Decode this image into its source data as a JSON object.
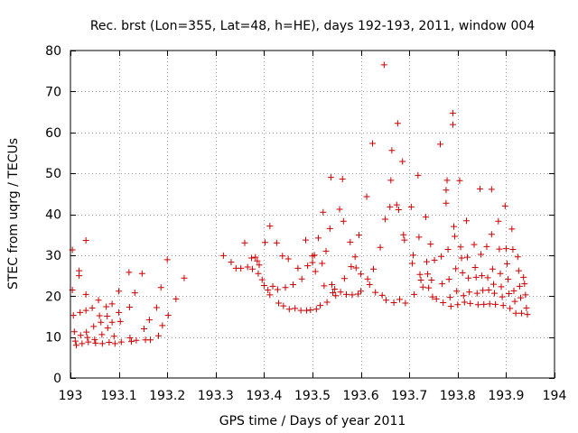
{
  "chart_data": {
    "type": "scatter",
    "title": "Rec. brst (Lon=355, Lat=48, h=HE), days 192-193, 2011, window 004",
    "xlabel": "GPS time / Days of year 2011",
    "ylabel": "STEC from uqrg / TECUs",
    "xlim": [
      193,
      194
    ],
    "ylim": [
      0,
      80
    ],
    "xticks": [
      193,
      193.1,
      193.2,
      193.3,
      193.4,
      193.5,
      193.6,
      193.7,
      193.8,
      193.9,
      194
    ],
    "xtick_labels": [
      "193",
      "193.1",
      "193.2",
      "193.3",
      "193.4",
      "193.5",
      "193.6",
      "193.7",
      "193.8",
      "193.9",
      "194"
    ],
    "yticks": [
      0,
      10,
      20,
      30,
      40,
      50,
      60,
      70,
      80
    ],
    "ytick_labels": [
      "0",
      "10",
      "20",
      "30",
      "40",
      "50",
      "60",
      "70",
      "80"
    ],
    "grid": true,
    "marker": "plus",
    "color": "#cc0000",
    "series": [
      {
        "name": "STEC",
        "points": [
          [
            193.004,
            31.3
          ],
          [
            193.004,
            21.5
          ],
          [
            193.006,
            15.3
          ],
          [
            193.008,
            11.3
          ],
          [
            193.01,
            9.0
          ],
          [
            193.012,
            8.0
          ],
          [
            193.018,
            25.0
          ],
          [
            193.018,
            26.2
          ],
          [
            193.02,
            16.0
          ],
          [
            193.021,
            10.4
          ],
          [
            193.024,
            8.4
          ],
          [
            193.032,
            33.6
          ],
          [
            193.032,
            20.4
          ],
          [
            193.032,
            16.5
          ],
          [
            193.033,
            11.2
          ],
          [
            193.035,
            9.9
          ],
          [
            193.037,
            8.8
          ],
          [
            193.045,
            17.1
          ],
          [
            193.048,
            12.6
          ],
          [
            193.05,
            9.4
          ],
          [
            193.052,
            8.5
          ],
          [
            193.058,
            19.0
          ],
          [
            193.06,
            15.2
          ],
          [
            193.063,
            13.6
          ],
          [
            193.065,
            10.6
          ],
          [
            193.066,
            8.4
          ],
          [
            193.074,
            17.4
          ],
          [
            193.076,
            15.1
          ],
          [
            193.077,
            12.2
          ],
          [
            193.08,
            8.7
          ],
          [
            193.086,
            18.1
          ],
          [
            193.086,
            13.6
          ],
          [
            193.09,
            10.2
          ],
          [
            193.092,
            8.4
          ],
          [
            193.1,
            21.2
          ],
          [
            193.1,
            16.0
          ],
          [
            193.103,
            13.8
          ],
          [
            193.105,
            8.8
          ],
          [
            193.121,
            25.8
          ],
          [
            193.122,
            17.3
          ],
          [
            193.123,
            9.8
          ],
          [
            193.126,
            8.9
          ],
          [
            193.133,
            20.8
          ],
          [
            193.136,
            9.2
          ],
          [
            193.148,
            25.5
          ],
          [
            193.152,
            12.0
          ],
          [
            193.155,
            9.3
          ],
          [
            193.163,
            14.2
          ],
          [
            193.165,
            9.3
          ],
          [
            193.178,
            17.2
          ],
          [
            193.182,
            10.3
          ],
          [
            193.187,
            22.1
          ],
          [
            193.19,
            12.8
          ],
          [
            193.2,
            28.9
          ],
          [
            193.202,
            15.3
          ],
          [
            193.218,
            19.3
          ],
          [
            193.235,
            24.4
          ],
          [
            193.316,
            29.9
          ],
          [
            193.332,
            28.3
          ],
          [
            193.342,
            26.8
          ],
          [
            193.352,
            26.8
          ],
          [
            193.36,
            33.0
          ],
          [
            193.366,
            27.1
          ],
          [
            193.374,
            29.3
          ],
          [
            193.376,
            26.6
          ],
          [
            193.382,
            29.5
          ],
          [
            193.386,
            28.6
          ],
          [
            193.388,
            25.5
          ],
          [
            193.39,
            27.6
          ],
          [
            193.396,
            24.0
          ],
          [
            193.4,
            22.6
          ],
          [
            193.402,
            33.1
          ],
          [
            193.408,
            21.5
          ],
          [
            193.412,
            37.1
          ],
          [
            193.412,
            20.3
          ],
          [
            193.418,
            22.4
          ],
          [
            193.426,
            33.0
          ],
          [
            193.428,
            21.6
          ],
          [
            193.43,
            18.3
          ],
          [
            193.438,
            29.8
          ],
          [
            193.44,
            17.6
          ],
          [
            193.444,
            22.1
          ],
          [
            193.45,
            29.1
          ],
          [
            193.452,
            16.8
          ],
          [
            193.46,
            22.8
          ],
          [
            193.464,
            17.0
          ],
          [
            193.47,
            26.8
          ],
          [
            193.476,
            16.5
          ],
          [
            193.478,
            24.2
          ],
          [
            193.486,
            33.7
          ],
          [
            193.488,
            16.5
          ],
          [
            193.49,
            27.4
          ],
          [
            193.496,
            16.6
          ],
          [
            193.5,
            29.8
          ],
          [
            193.5,
            28.2
          ],
          [
            193.504,
            30.0
          ],
          [
            193.506,
            26.0
          ],
          [
            193.508,
            16.8
          ],
          [
            193.512,
            34.2
          ],
          [
            193.516,
            17.7
          ],
          [
            193.52,
            28.0
          ],
          [
            193.522,
            40.5
          ],
          [
            193.524,
            22.5
          ],
          [
            193.528,
            31.0
          ],
          [
            193.53,
            18.5
          ],
          [
            193.536,
            36.5
          ],
          [
            193.538,
            49.0
          ],
          [
            193.54,
            22.8
          ],
          [
            193.542,
            20.8
          ],
          [
            193.546,
            21.7
          ],
          [
            193.548,
            20.1
          ],
          [
            193.556,
            41.2
          ],
          [
            193.558,
            21.0
          ],
          [
            193.562,
            48.6
          ],
          [
            193.564,
            38.3
          ],
          [
            193.566,
            24.3
          ],
          [
            193.57,
            20.4
          ],
          [
            193.578,
            33.2
          ],
          [
            193.58,
            27.2
          ],
          [
            193.582,
            20.3
          ],
          [
            193.588,
            29.6
          ],
          [
            193.59,
            26.9
          ],
          [
            193.594,
            20.5
          ],
          [
            193.596,
            34.9
          ],
          [
            193.6,
            25.4
          ],
          [
            193.6,
            21.2
          ],
          [
            193.612,
            44.3
          ],
          [
            193.614,
            24.2
          ],
          [
            193.618,
            22.8
          ],
          [
            193.624,
            57.3
          ],
          [
            193.626,
            26.6
          ],
          [
            193.63,
            20.9
          ],
          [
            193.64,
            31.9
          ],
          [
            193.644,
            20.2
          ],
          [
            193.648,
            76.5
          ],
          [
            193.65,
            38.8
          ],
          [
            193.652,
            19.0
          ],
          [
            193.66,
            41.8
          ],
          [
            193.662,
            48.3
          ],
          [
            193.664,
            55.6
          ],
          [
            193.668,
            18.4
          ],
          [
            193.674,
            42.3
          ],
          [
            193.676,
            62.2
          ],
          [
            193.678,
            41.1
          ],
          [
            193.68,
            19.2
          ],
          [
            193.686,
            52.9
          ],
          [
            193.688,
            35.0
          ],
          [
            193.69,
            33.7
          ],
          [
            193.692,
            18.3
          ],
          [
            193.704,
            41.8
          ],
          [
            193.706,
            28.0
          ],
          [
            193.708,
            30.0
          ],
          [
            193.71,
            20.4
          ],
          [
            193.718,
            49.5
          ],
          [
            193.72,
            34.4
          ],
          [
            193.722,
            25.3
          ],
          [
            193.724,
            23.9
          ],
          [
            193.728,
            22.2
          ],
          [
            193.734,
            39.3
          ],
          [
            193.736,
            28.4
          ],
          [
            193.738,
            25.4
          ],
          [
            193.74,
            22.0
          ],
          [
            193.744,
            32.7
          ],
          [
            193.746,
            23.9
          ],
          [
            193.748,
            19.8
          ],
          [
            193.752,
            28.8
          ],
          [
            193.756,
            19.3
          ],
          [
            193.764,
            57.1
          ],
          [
            193.766,
            29.7
          ],
          [
            193.768,
            23.0
          ],
          [
            193.77,
            18.4
          ],
          [
            193.776,
            45.9
          ],
          [
            193.776,
            42.7
          ],
          [
            193.778,
            48.3
          ],
          [
            193.78,
            31.4
          ],
          [
            193.782,
            24.1
          ],
          [
            193.784,
            19.7
          ],
          [
            193.786,
            17.5
          ],
          [
            193.79,
            64.7
          ],
          [
            193.79,
            61.9
          ],
          [
            193.792,
            37.0
          ],
          [
            193.794,
            34.6
          ],
          [
            193.796,
            26.7
          ],
          [
            193.798,
            21.2
          ],
          [
            193.8,
            17.9
          ],
          [
            193.804,
            48.2
          ],
          [
            193.806,
            32.0
          ],
          [
            193.808,
            29.3
          ],
          [
            193.81,
            25.7
          ],
          [
            193.812,
            20.1
          ],
          [
            193.814,
            18.5
          ],
          [
            193.818,
            38.4
          ],
          [
            193.82,
            29.5
          ],
          [
            193.822,
            24.4
          ],
          [
            193.824,
            21.0
          ],
          [
            193.826,
            18.2
          ],
          [
            193.834,
            32.6
          ],
          [
            193.836,
            27.0
          ],
          [
            193.838,
            24.6
          ],
          [
            193.84,
            20.7
          ],
          [
            193.842,
            17.9
          ],
          [
            193.846,
            46.2
          ],
          [
            193.848,
            30.2
          ],
          [
            193.85,
            25.0
          ],
          [
            193.852,
            21.4
          ],
          [
            193.854,
            18.0
          ],
          [
            193.86,
            32.1
          ],
          [
            193.862,
            24.5
          ],
          [
            193.864,
            21.5
          ],
          [
            193.866,
            18.1
          ],
          [
            193.87,
            46.1
          ],
          [
            193.87,
            35.1
          ],
          [
            193.872,
            26.6
          ],
          [
            193.874,
            22.9
          ],
          [
            193.876,
            20.7
          ],
          [
            193.878,
            18.0
          ],
          [
            193.884,
            38.3
          ],
          [
            193.886,
            31.5
          ],
          [
            193.888,
            25.5
          ],
          [
            193.89,
            22.3
          ],
          [
            193.892,
            19.8
          ],
          [
            193.894,
            17.7
          ],
          [
            193.898,
            42.0
          ],
          [
            193.9,
            31.6
          ],
          [
            193.902,
            27.9
          ],
          [
            193.904,
            24.1
          ],
          [
            193.906,
            20.6
          ],
          [
            193.908,
            17.0
          ],
          [
            193.912,
            36.4
          ],
          [
            193.914,
            31.4
          ],
          [
            193.916,
            21.3
          ],
          [
            193.918,
            18.7
          ],
          [
            193.92,
            15.8
          ],
          [
            193.924,
            29.6
          ],
          [
            193.926,
            26.2
          ],
          [
            193.928,
            22.4
          ],
          [
            193.93,
            19.6
          ],
          [
            193.932,
            15.8
          ],
          [
            193.936,
            24.6
          ],
          [
            193.938,
            23.0
          ],
          [
            193.94,
            20.3
          ],
          [
            193.942,
            17.1
          ],
          [
            193.944,
            15.5
          ]
        ]
      }
    ]
  }
}
